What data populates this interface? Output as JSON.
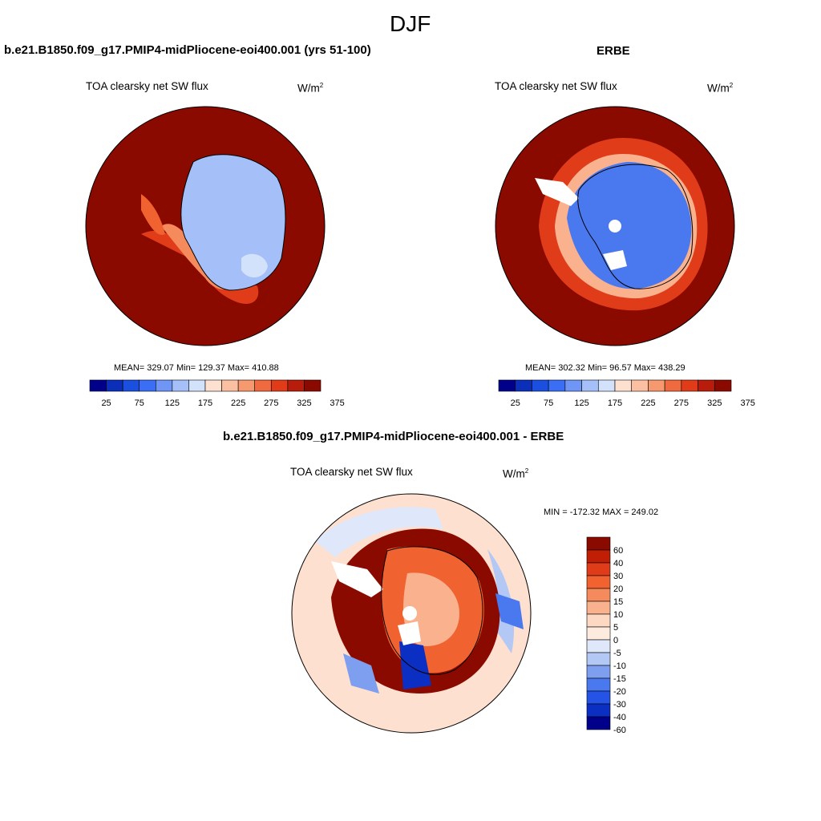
{
  "figure": {
    "title": "DJF"
  },
  "panels": {
    "model": {
      "case_title": "b.e21.B1850.f09_g17.PMIP4-midPliocene-eoi400.001 (yrs 51-100)",
      "variable": "TOA clearsky net SW flux",
      "units": "W/m",
      "units_sup": "2",
      "stats": "MEAN= 329.07  Min= 129.37  Max= 410.88"
    },
    "obs": {
      "case_title": "ERBE",
      "variable": "TOA clearsky net SW flux",
      "units": "W/m",
      "units_sup": "2",
      "stats": "MEAN= 302.32  Min=  96.57  Max= 438.29"
    },
    "diff": {
      "case_title": "b.e21.B1850.f09_g17.PMIP4-midPliocene-eoi400.001 - ERBE",
      "variable": "TOA clearsky net SW flux",
      "units": "W/m",
      "units_sup": "2",
      "stats": "MIN = -172.32 MAX = 249.02"
    }
  },
  "colorbar_abs": {
    "colors": [
      "#00008b",
      "#0b2fb8",
      "#1b4fe0",
      "#3a6ef5",
      "#6f95f5",
      "#a5bff8",
      "#d3e2fb",
      "#fde0d0",
      "#fbbfa2",
      "#f7996e",
      "#f06a3f",
      "#e03c1a",
      "#b81c0a",
      "#8b0a00"
    ],
    "tick_labels": [
      "25",
      "75",
      "125",
      "175",
      "225",
      "275",
      "325",
      "375"
    ]
  },
  "colorbar_diff": {
    "colors": [
      "#8b0a00",
      "#c01e05",
      "#e03c1a",
      "#f0622f",
      "#f58b5c",
      "#fab28e",
      "#fdd8c2",
      "#fdebe0",
      "#dfe8fb",
      "#b4c8f5",
      "#7e9ff0",
      "#4a78ee",
      "#2453e6",
      "#0b2fc2",
      "#00008b"
    ],
    "tick_labels": [
      "60",
      "40",
      "30",
      "20",
      "15",
      "10",
      "5",
      "0",
      "-5",
      "-10",
      "-15",
      "-20",
      "-30",
      "-40",
      "-60"
    ]
  },
  "map_colors": {
    "ocean_high": "#8b0a00",
    "model_ice": "#a5bff8",
    "obs_ice": "#4a78ee",
    "diff_ocean": "#fde0d0",
    "diff_warm": "#8b0a00"
  }
}
